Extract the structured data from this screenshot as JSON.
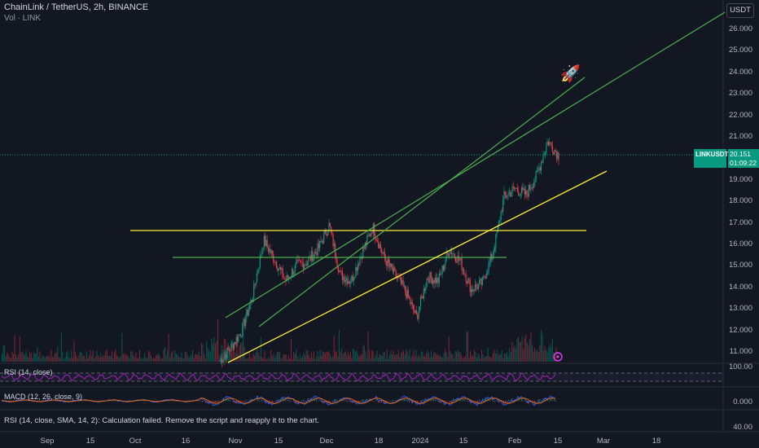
{
  "header": {
    "title": "ChainLink / TetherUS, 2h, BINANCE",
    "sub": "Vol · LINK"
  },
  "currency_button": "USDT",
  "price_axis": [
    "26.000",
    "25.000",
    "24.000",
    "23.000",
    "22.000",
    "21.000",
    "20.000",
    "19.000",
    "18.000",
    "17.000",
    "16.000",
    "15.000",
    "14.000",
    "13.000",
    "12.000",
    "11.000"
  ],
  "current_price": {
    "symbol": "LINKUSDT",
    "price": "20.151",
    "countdown": "01:09:22"
  },
  "rsi_panel": {
    "label": "RSI (14, close)",
    "axis": "100.00"
  },
  "macd_panel": {
    "label": "MACD (12, 26, close, 9)",
    "axis": "0.000"
  },
  "error_panel": {
    "message": "RSI (14, close, SMA, 14, 2): Calculation failed. Remove the script and reapply it to the chart.",
    "axis": "40.00"
  },
  "time_axis": [
    "Sep",
    "15",
    "Oct",
    "16",
    "Nov",
    "15",
    "Dec",
    "18",
    "2024",
    "15",
    "Feb",
    "15",
    "Mar",
    "18"
  ],
  "icons": {
    "rocket": "rocket-icon",
    "alert": "alert-icon"
  },
  "colors": {
    "background": "#131722",
    "up": "#089981",
    "down": "#f23645",
    "channel": "#4caf50",
    "support": "#ffeb3b",
    "rsi": "#9c27b0"
  },
  "chart_data": {
    "type": "candlestick",
    "symbol": "LINKUSDT",
    "interval": "2h",
    "exchange": "BINANCE",
    "ylim": [
      10.5,
      26.7
    ],
    "approx_close_path": [
      {
        "x": "Oct 25",
        "y": 10.6
      },
      {
        "x": "Nov 1",
        "y": 11.2
      },
      {
        "x": "Nov 5",
        "y": 12.0
      },
      {
        "x": "Nov 9",
        "y": 13.6
      },
      {
        "x": "Nov 12",
        "y": 16.2
      },
      {
        "x": "Nov 14",
        "y": 15.3
      },
      {
        "x": "Nov 18",
        "y": 14.3
      },
      {
        "x": "Nov 22",
        "y": 15.0
      },
      {
        "x": "Nov 28",
        "y": 15.2
      },
      {
        "x": "Dec 3",
        "y": 15.8
      },
      {
        "x": "Dec 8",
        "y": 16.9
      },
      {
        "x": "Dec 11",
        "y": 14.6
      },
      {
        "x": "Dec 15",
        "y": 14.3
      },
      {
        "x": "Dec 20",
        "y": 15.6
      },
      {
        "x": "Dec 24",
        "y": 16.8
      },
      {
        "x": "Dec 28",
        "y": 15.4
      },
      {
        "x": "Jan 1",
        "y": 14.6
      },
      {
        "x": "Jan 4",
        "y": 13.8
      },
      {
        "x": "Jan 6",
        "y": 12.6
      },
      {
        "x": "Jan 9",
        "y": 14.5
      },
      {
        "x": "Jan 13",
        "y": 14.3
      },
      {
        "x": "Jan 18",
        "y": 15.8
      },
      {
        "x": "Jan 22",
        "y": 15.2
      },
      {
        "x": "Jan 24",
        "y": 13.9
      },
      {
        "x": "Jan 28",
        "y": 14.2
      },
      {
        "x": "Jan 30",
        "y": 15.6
      },
      {
        "x": "Feb 2",
        "y": 18.2
      },
      {
        "x": "Feb 5",
        "y": 18.6
      },
      {
        "x": "Feb 8",
        "y": 18.3
      },
      {
        "x": "Feb 10",
        "y": 19.2
      },
      {
        "x": "Feb 12",
        "y": 20.8
      },
      {
        "x": "Feb 14",
        "y": 20.15
      }
    ],
    "horizontal_levels": [
      16.65,
      15.35
    ],
    "current_price": 20.151
  }
}
